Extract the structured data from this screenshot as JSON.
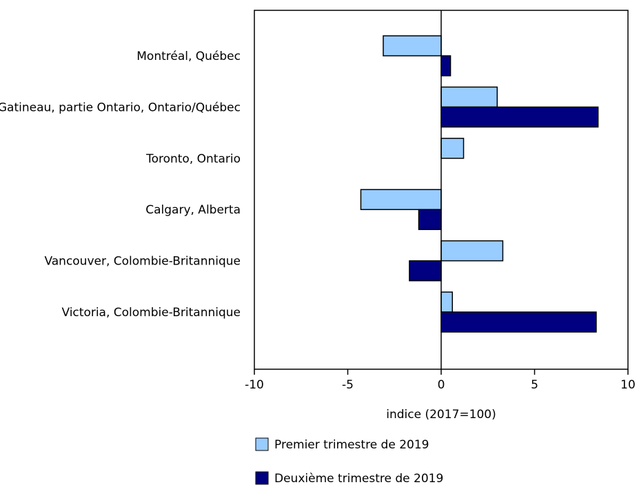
{
  "chart_data": {
    "type": "bar",
    "orientation": "horizontal",
    "title": "",
    "xlabel": "indice (2017=100)",
    "ylabel": "",
    "xlim": [
      -10,
      10
    ],
    "xticks": [
      "-10",
      "-5",
      "0",
      "5",
      "10"
    ],
    "grid": false,
    "legend_position": "bottom",
    "categories": [
      "Montréal, Québec",
      "Ottawa-Gatineau, partie Ontario, Ontario/Québec",
      "Toronto, Ontario",
      "Calgary, Alberta",
      "Vancouver, Colombie-Britannique",
      "Victoria, Colombie-Britannique"
    ],
    "series": [
      {
        "name": "Premier trimestre de 2019",
        "color": "#99ccff",
        "values": [
          -3.1,
          3.0,
          1.2,
          -4.3,
          3.3,
          0.6
        ]
      },
      {
        "name": "Deuxième trimestre de 2019",
        "color": "#000080",
        "values": [
          0.5,
          8.4,
          0.0,
          -1.2,
          -1.7,
          8.3
        ]
      }
    ]
  }
}
